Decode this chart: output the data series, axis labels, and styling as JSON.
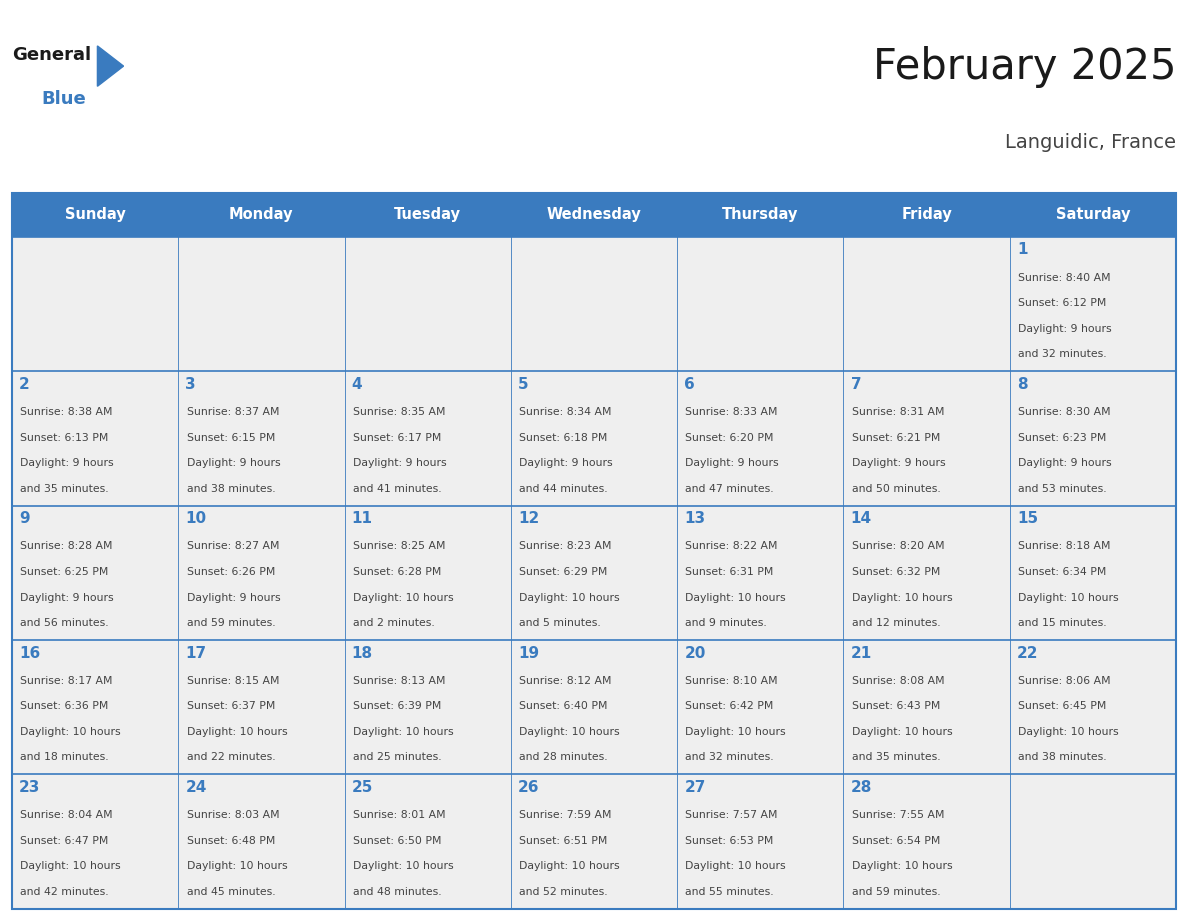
{
  "title": "February 2025",
  "subtitle": "Languidic, France",
  "days_of_week": [
    "Sunday",
    "Monday",
    "Tuesday",
    "Wednesday",
    "Thursday",
    "Friday",
    "Saturday"
  ],
  "header_bg_color": "#3a7bbf",
  "header_text_color": "#ffffff",
  "cell_bg_color": "#efefef",
  "border_color": "#3a7bbf",
  "day_num_color": "#3a7bbf",
  "text_color": "#444444",
  "title_color": "#1a1a1a",
  "subtitle_color": "#444444",
  "logo_general_color": "#1a1a1a",
  "logo_blue_color": "#3a7bbf",
  "weeks": [
    [
      {
        "day": null
      },
      {
        "day": null
      },
      {
        "day": null
      },
      {
        "day": null
      },
      {
        "day": null
      },
      {
        "day": null
      },
      {
        "day": 1,
        "sunrise": "8:40 AM",
        "sunset": "6:12 PM",
        "daylight_hours": 9,
        "daylight_minutes": 32
      }
    ],
    [
      {
        "day": 2,
        "sunrise": "8:38 AM",
        "sunset": "6:13 PM",
        "daylight_hours": 9,
        "daylight_minutes": 35
      },
      {
        "day": 3,
        "sunrise": "8:37 AM",
        "sunset": "6:15 PM",
        "daylight_hours": 9,
        "daylight_minutes": 38
      },
      {
        "day": 4,
        "sunrise": "8:35 AM",
        "sunset": "6:17 PM",
        "daylight_hours": 9,
        "daylight_minutes": 41
      },
      {
        "day": 5,
        "sunrise": "8:34 AM",
        "sunset": "6:18 PM",
        "daylight_hours": 9,
        "daylight_minutes": 44
      },
      {
        "day": 6,
        "sunrise": "8:33 AM",
        "sunset": "6:20 PM",
        "daylight_hours": 9,
        "daylight_minutes": 47
      },
      {
        "day": 7,
        "sunrise": "8:31 AM",
        "sunset": "6:21 PM",
        "daylight_hours": 9,
        "daylight_minutes": 50
      },
      {
        "day": 8,
        "sunrise": "8:30 AM",
        "sunset": "6:23 PM",
        "daylight_hours": 9,
        "daylight_minutes": 53
      }
    ],
    [
      {
        "day": 9,
        "sunrise": "8:28 AM",
        "sunset": "6:25 PM",
        "daylight_hours": 9,
        "daylight_minutes": 56
      },
      {
        "day": 10,
        "sunrise": "8:27 AM",
        "sunset": "6:26 PM",
        "daylight_hours": 9,
        "daylight_minutes": 59
      },
      {
        "day": 11,
        "sunrise": "8:25 AM",
        "sunset": "6:28 PM",
        "daylight_hours": 10,
        "daylight_minutes": 2
      },
      {
        "day": 12,
        "sunrise": "8:23 AM",
        "sunset": "6:29 PM",
        "daylight_hours": 10,
        "daylight_minutes": 5
      },
      {
        "day": 13,
        "sunrise": "8:22 AM",
        "sunset": "6:31 PM",
        "daylight_hours": 10,
        "daylight_minutes": 9
      },
      {
        "day": 14,
        "sunrise": "8:20 AM",
        "sunset": "6:32 PM",
        "daylight_hours": 10,
        "daylight_minutes": 12
      },
      {
        "day": 15,
        "sunrise": "8:18 AM",
        "sunset": "6:34 PM",
        "daylight_hours": 10,
        "daylight_minutes": 15
      }
    ],
    [
      {
        "day": 16,
        "sunrise": "8:17 AM",
        "sunset": "6:36 PM",
        "daylight_hours": 10,
        "daylight_minutes": 18
      },
      {
        "day": 17,
        "sunrise": "8:15 AM",
        "sunset": "6:37 PM",
        "daylight_hours": 10,
        "daylight_minutes": 22
      },
      {
        "day": 18,
        "sunrise": "8:13 AM",
        "sunset": "6:39 PM",
        "daylight_hours": 10,
        "daylight_minutes": 25
      },
      {
        "day": 19,
        "sunrise": "8:12 AM",
        "sunset": "6:40 PM",
        "daylight_hours": 10,
        "daylight_minutes": 28
      },
      {
        "day": 20,
        "sunrise": "8:10 AM",
        "sunset": "6:42 PM",
        "daylight_hours": 10,
        "daylight_minutes": 32
      },
      {
        "day": 21,
        "sunrise": "8:08 AM",
        "sunset": "6:43 PM",
        "daylight_hours": 10,
        "daylight_minutes": 35
      },
      {
        "day": 22,
        "sunrise": "8:06 AM",
        "sunset": "6:45 PM",
        "daylight_hours": 10,
        "daylight_minutes": 38
      }
    ],
    [
      {
        "day": 23,
        "sunrise": "8:04 AM",
        "sunset": "6:47 PM",
        "daylight_hours": 10,
        "daylight_minutes": 42
      },
      {
        "day": 24,
        "sunrise": "8:03 AM",
        "sunset": "6:48 PM",
        "daylight_hours": 10,
        "daylight_minutes": 45
      },
      {
        "day": 25,
        "sunrise": "8:01 AM",
        "sunset": "6:50 PM",
        "daylight_hours": 10,
        "daylight_minutes": 48
      },
      {
        "day": 26,
        "sunrise": "7:59 AM",
        "sunset": "6:51 PM",
        "daylight_hours": 10,
        "daylight_minutes": 52
      },
      {
        "day": 27,
        "sunrise": "7:57 AM",
        "sunset": "6:53 PM",
        "daylight_hours": 10,
        "daylight_minutes": 55
      },
      {
        "day": 28,
        "sunrise": "7:55 AM",
        "sunset": "6:54 PM",
        "daylight_hours": 10,
        "daylight_minutes": 59
      },
      {
        "day": null
      }
    ]
  ]
}
